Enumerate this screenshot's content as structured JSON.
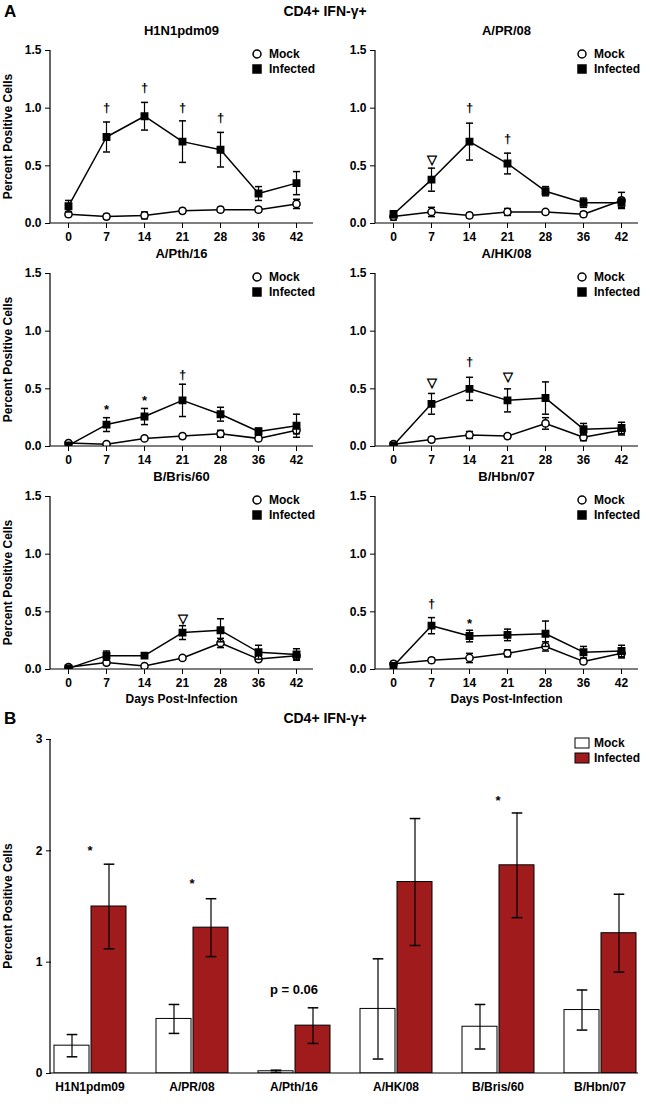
{
  "panels": [
    {
      "label": "A",
      "title": "CD4+ IFN-γ+"
    },
    {
      "label": "B",
      "title": "CD4+ IFN-γ+"
    }
  ],
  "chart_data": [
    {
      "type": "line",
      "title": "H1N1pdm09",
      "ylabel": "Percent Positive Cells",
      "categories": [
        "0",
        "7",
        "14",
        "21",
        "28",
        "36",
        "42"
      ],
      "ylim": [
        0,
        1.5
      ],
      "yticks": [
        {
          "value": 0,
          "label": "0.0"
        },
        {
          "value": 0.5,
          "label": "0.5"
        },
        {
          "value": 1.0,
          "label": "1.0"
        },
        {
          "value": 1.5,
          "label": "1.5"
        }
      ],
      "legend": "top-right",
      "series": [
        {
          "name": "Mock",
          "color": "#000000",
          "marker": "open circle",
          "values": [
            0.08,
            0.06,
            0.07,
            0.11,
            0.12,
            0.12,
            0.17
          ],
          "errors": [
            0.02,
            0.02,
            0.03,
            0.02,
            0.02,
            0.02,
            0.04
          ]
        },
        {
          "name": "Infected",
          "color": "#000000",
          "marker": "square",
          "values": [
            0.15,
            0.75,
            0.93,
            0.71,
            0.64,
            0.26,
            0.35
          ],
          "errors": [
            0.05,
            0.13,
            0.12,
            0.18,
            0.15,
            0.06,
            0.1
          ]
        }
      ],
      "annotations": [
        {
          "x": "7",
          "y": 1.0,
          "text": "†"
        },
        {
          "x": "14",
          "y": 1.18,
          "text": "†"
        },
        {
          "x": "21",
          "y": 1.0,
          "text": "†"
        },
        {
          "x": "28",
          "y": 0.92,
          "text": "†"
        }
      ]
    },
    {
      "type": "line",
      "title": "A/PR/08",
      "categories": [
        "0",
        "7",
        "14",
        "21",
        "28",
        "36",
        "42"
      ],
      "ylim": [
        0,
        1.5
      ],
      "yticks": [
        {
          "value": 0,
          "label": "0.0"
        },
        {
          "value": 0.5,
          "label": "0.5"
        },
        {
          "value": 1.0,
          "label": "1.0"
        },
        {
          "value": 1.5,
          "label": "1.5"
        }
      ],
      "legend": "top-right",
      "series": [
        {
          "name": "Mock",
          "color": "#000000",
          "marker": "open circle",
          "values": [
            0.06,
            0.1,
            0.07,
            0.1,
            0.1,
            0.08,
            0.2
          ],
          "errors": [
            0.03,
            0.04,
            0.02,
            0.03,
            0.02,
            0.02,
            0.07
          ]
        },
        {
          "name": "Infected",
          "color": "#000000",
          "marker": "square",
          "values": [
            0.08,
            0.38,
            0.71,
            0.52,
            0.28,
            0.18,
            0.18
          ],
          "errors": [
            0.03,
            0.1,
            0.16,
            0.09,
            0.04,
            0.04,
            0.04
          ]
        }
      ],
      "annotations": [
        {
          "x": "7",
          "y": 0.55,
          "text": "▽"
        },
        {
          "x": "14",
          "y": 1.0,
          "text": "†"
        },
        {
          "x": "21",
          "y": 0.73,
          "text": "†"
        }
      ]
    },
    {
      "type": "line",
      "title": "A/Pth/16",
      "ylabel": "Percent Positive Cells",
      "categories": [
        "0",
        "7",
        "14",
        "21",
        "28",
        "36",
        "42"
      ],
      "ylim": [
        0,
        1.5
      ],
      "yticks": [
        {
          "value": 0,
          "label": "0.0"
        },
        {
          "value": 0.5,
          "label": "0.5"
        },
        {
          "value": 1.0,
          "label": "1.0"
        },
        {
          "value": 1.5,
          "label": "1.5"
        }
      ],
      "legend": "top-right",
      "series": [
        {
          "name": "Mock",
          "color": "#000000",
          "marker": "open circle",
          "values": [
            0.03,
            0.02,
            0.07,
            0.09,
            0.11,
            0.07,
            0.14
          ],
          "errors": [
            0.01,
            0.01,
            0.01,
            0.02,
            0.03,
            0.02,
            0.03
          ]
        },
        {
          "name": "Infected",
          "color": "#000000",
          "marker": "square",
          "values": [
            0.01,
            0.19,
            0.26,
            0.4,
            0.28,
            0.13,
            0.18
          ],
          "errors": [
            0.02,
            0.06,
            0.07,
            0.14,
            0.06,
            0.03,
            0.1
          ]
        }
      ],
      "annotations": [
        {
          "x": "7",
          "y": 0.32,
          "text": "*"
        },
        {
          "x": "14",
          "y": 0.4,
          "text": "*"
        },
        {
          "x": "21",
          "y": 0.62,
          "text": "†"
        }
      ]
    },
    {
      "type": "line",
      "title": "A/HK/08",
      "categories": [
        "0",
        "7",
        "14",
        "21",
        "28",
        "36",
        "42"
      ],
      "ylim": [
        0,
        1.5
      ],
      "yticks": [
        {
          "value": 0,
          "label": "0.0"
        },
        {
          "value": 0.5,
          "label": "0.5"
        },
        {
          "value": 1.0,
          "label": "1.0"
        },
        {
          "value": 1.5,
          "label": "1.5"
        }
      ],
      "legend": "top-right",
      "series": [
        {
          "name": "Mock",
          "color": "#000000",
          "marker": "open circle",
          "values": [
            0.02,
            0.06,
            0.1,
            0.09,
            0.2,
            0.08,
            0.14
          ],
          "errors": [
            0.01,
            0.02,
            0.03,
            0.02,
            0.05,
            0.03,
            0.04
          ]
        },
        {
          "name": "Infected",
          "color": "#000000",
          "marker": "square",
          "values": [
            0.01,
            0.37,
            0.5,
            0.4,
            0.42,
            0.15,
            0.16
          ],
          "errors": [
            0.01,
            0.09,
            0.1,
            0.1,
            0.14,
            0.05,
            0.05
          ]
        }
      ],
      "annotations": [
        {
          "x": "7",
          "y": 0.55,
          "text": "▽"
        },
        {
          "x": "14",
          "y": 0.73,
          "text": "†"
        },
        {
          "x": "21",
          "y": 0.6,
          "text": "▽"
        }
      ]
    },
    {
      "type": "line",
      "title": "B/Bris/60",
      "ylabel": "Percent Positive Cells",
      "xlabel": "Days Post-Infection",
      "categories": [
        "0",
        "7",
        "14",
        "21",
        "28",
        "36",
        "42"
      ],
      "ylim": [
        0,
        1.5
      ],
      "yticks": [
        {
          "value": 0,
          "label": "0.0"
        },
        {
          "value": 0.5,
          "label": "0.5"
        },
        {
          "value": 1.0,
          "label": "1.0"
        },
        {
          "value": 1.5,
          "label": "1.5"
        }
      ],
      "legend": "top-right",
      "series": [
        {
          "name": "Mock",
          "color": "#000000",
          "marker": "open circle",
          "values": [
            0.02,
            0.06,
            0.03,
            0.1,
            0.23,
            0.09,
            0.12
          ],
          "errors": [
            0.01,
            0.02,
            0.01,
            0.02,
            0.04,
            0.02,
            0.03
          ]
        },
        {
          "name": "Infected",
          "color": "#000000",
          "marker": "square",
          "values": [
            0.01,
            0.12,
            0.12,
            0.32,
            0.34,
            0.15,
            0.13
          ],
          "errors": [
            0.01,
            0.04,
            0.01,
            0.06,
            0.1,
            0.06,
            0.05
          ]
        }
      ],
      "annotations": [
        {
          "x": "21",
          "y": 0.44,
          "text": "▽"
        }
      ]
    },
    {
      "type": "line",
      "title": "B/Hbn/07",
      "xlabel": "Days Post-Infection",
      "categories": [
        "0",
        "7",
        "14",
        "21",
        "28",
        "36",
        "42"
      ],
      "ylim": [
        0,
        1.5
      ],
      "yticks": [
        {
          "value": 0,
          "label": "0.0"
        },
        {
          "value": 0.5,
          "label": "0.5"
        },
        {
          "value": 1.0,
          "label": "1.0"
        },
        {
          "value": 1.5,
          "label": "1.5"
        }
      ],
      "legend": "top-right",
      "series": [
        {
          "name": "Mock",
          "color": "#000000",
          "marker": "open circle",
          "values": [
            0.05,
            0.08,
            0.1,
            0.14,
            0.2,
            0.07,
            0.14
          ],
          "errors": [
            0.02,
            0.02,
            0.04,
            0.03,
            0.04,
            0.02,
            0.04
          ]
        },
        {
          "name": "Infected",
          "color": "#000000",
          "marker": "square",
          "values": [
            0.03,
            0.38,
            0.29,
            0.3,
            0.31,
            0.15,
            0.16
          ],
          "errors": [
            0.01,
            0.07,
            0.05,
            0.05,
            0.11,
            0.05,
            0.05
          ]
        }
      ],
      "annotations": [
        {
          "x": "7",
          "y": 0.57,
          "text": "†"
        },
        {
          "x": "14",
          "y": 0.4,
          "text": "*"
        }
      ]
    },
    {
      "type": "bar",
      "ylabel": "Percent Positive Cells",
      "categories": [
        "H1N1pdm09",
        "A/PR/08",
        "A/Pth/16",
        "A/HK/08",
        "B/Bris/60",
        "B/Hbn/07"
      ],
      "ylim": [
        0,
        3
      ],
      "yticks": [
        0,
        1,
        2,
        3
      ],
      "legend": "top-right",
      "series": [
        {
          "name": "Mock",
          "color": "#ffffff",
          "values": [
            0.25,
            0.49,
            0.02,
            0.58,
            0.42,
            0.57
          ],
          "errors": [
            0.1,
            0.13,
            0.01,
            0.45,
            0.2,
            0.18
          ]
        },
        {
          "name": "Infected",
          "color": "#a01c1c",
          "values": [
            1.5,
            1.31,
            0.43,
            1.72,
            1.87,
            1.26
          ],
          "errors": [
            0.38,
            0.26,
            0.16,
            0.57,
            0.47,
            0.35
          ]
        }
      ],
      "annotations": [
        {
          "category": "H1N1pdm09",
          "y": 2.0,
          "text": "*"
        },
        {
          "category": "A/PR/08",
          "y": 1.7,
          "text": "*"
        },
        {
          "category": "A/Pth/16",
          "y": 0.75,
          "text": "p = 0.06"
        },
        {
          "category": "B/Bris/60",
          "y": 2.45,
          "text": "*"
        }
      ]
    }
  ]
}
